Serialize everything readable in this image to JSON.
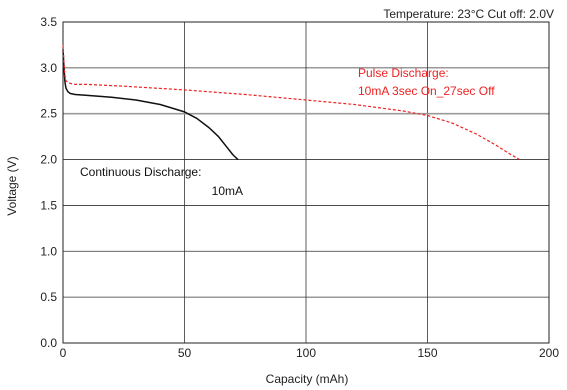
{
  "chart_data": {
    "type": "line",
    "note": "Temperature: 23°C   Cut off: 2.0V",
    "xlabel": "Capacity (mAh)",
    "ylabel": "Voltage (V)",
    "xlim": [
      0,
      200
    ],
    "ylim": [
      0,
      3.5
    ],
    "xticks": [
      0,
      50,
      100,
      150,
      200
    ],
    "yticks": [
      0.0,
      0.5,
      1.0,
      1.5,
      2.0,
      2.5,
      3.0,
      3.5
    ],
    "ytick_labels": [
      "0.0",
      "0.5",
      "1.0",
      "1.5",
      "2.0",
      "2.5",
      "3.0",
      "3.5"
    ],
    "grid": true,
    "highlight_line_y": 2.5,
    "series": [
      {
        "name": "Continuous Discharge: 10mA",
        "label_lines": [
          "Continuous Discharge:",
          "10mA"
        ],
        "color": "#111111",
        "dash": "solid",
        "x": [
          0,
          0.4,
          0.8,
          1.2,
          2,
          3,
          5,
          10,
          20,
          30,
          40,
          50,
          55,
          60,
          64,
          67,
          70,
          72
        ],
        "y": [
          3.2,
          3.0,
          2.85,
          2.78,
          2.74,
          2.72,
          2.71,
          2.7,
          2.68,
          2.65,
          2.6,
          2.52,
          2.45,
          2.35,
          2.25,
          2.15,
          2.05,
          2.0
        ]
      },
      {
        "name": "Pulse Discharge: 10mA 3sec On_27sec Off",
        "label_lines": [
          "Pulse Discharge:",
          "10mA 3sec On_27sec Off"
        ],
        "color": "#ee2222",
        "dash": "dashed",
        "x": [
          0,
          0.4,
          0.8,
          1.2,
          2,
          3,
          5,
          10,
          25,
          50,
          75,
          100,
          120,
          140,
          150,
          160,
          170,
          178,
          184,
          188
        ],
        "y": [
          3.25,
          3.05,
          2.92,
          2.86,
          2.84,
          2.83,
          2.82,
          2.82,
          2.8,
          2.76,
          2.71,
          2.65,
          2.6,
          2.53,
          2.48,
          2.4,
          2.28,
          2.16,
          2.06,
          2.0
        ]
      }
    ]
  }
}
